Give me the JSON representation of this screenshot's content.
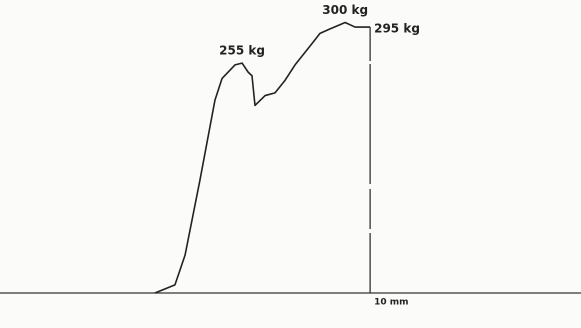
{
  "chart_data": {
    "type": "line",
    "x": [
      0,
      0.93,
      1.4,
      2.09,
      2.79,
      3.12,
      3.72,
      4.05,
      4.33,
      4.51,
      4.65,
      5.12,
      5.58,
      6.05,
      6.51,
      7.21,
      7.67,
      8.14,
      8.84,
      9.3,
      10
    ],
    "values": [
      0,
      9,
      42,
      125,
      214,
      238,
      253,
      255,
      245,
      241,
      208,
      219,
      222,
      236,
      253,
      274,
      288,
      293,
      300,
      295,
      295
    ],
    "value_labels": [
      null,
      null,
      null,
      null,
      null,
      null,
      null,
      "255 kg",
      null,
      null,
      null,
      null,
      null,
      null,
      null,
      null,
      null,
      null,
      "300 kg",
      null,
      "295 kg"
    ],
    "color": "#222222",
    "xlim": [
      -7.2,
      19.8
    ],
    "ylim": [
      0,
      325
    ],
    "xticks": [
      {
        "value": 10,
        "label": "10 mm"
      }
    ]
  }
}
